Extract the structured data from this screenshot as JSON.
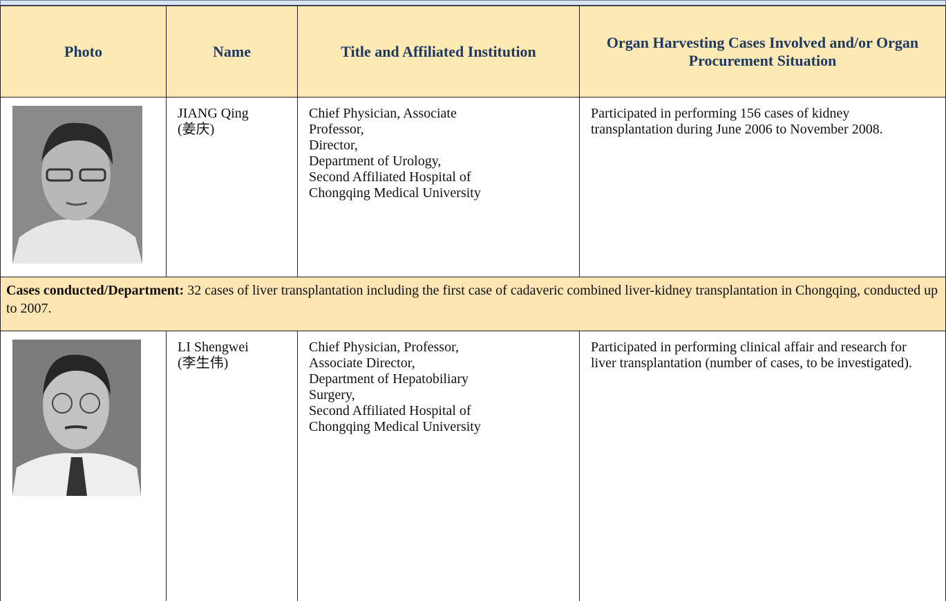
{
  "table": {
    "headers": [
      "Photo",
      "Name",
      "Title and Affiliated Institution",
      "Organ Harvesting Cases Involved and/or Organ Procurement Situation"
    ],
    "rows": [
      {
        "name": [
          "JIANG Qing",
          "(姜庆)"
        ],
        "title": [
          "Chief Physician, Associate",
          "Professor,",
          "Director,",
          "Department of Urology,",
          "Second Affiliated Hospital of",
          "Chongqing Medical University"
        ],
        "cases": "Participated in performing 156 cases of kidney transplantation during June 2006 to November 2008.",
        "note": {
          "label": "Cases conducted/Department:",
          "text": "32 cases of liver transplantation including the first case of cadaveric combined liver-kidney transplantation in Chongqing, conducted up to 2007."
        }
      },
      {
        "name": [
          "LI Shengwei",
          "(李生伟)"
        ],
        "title": [
          "Chief Physician, Professor,",
          "Associate Director,",
          "Department of Hepatobiliary",
          "Surgery,",
          "Second Affiliated Hospital of",
          "Chongqing Medical University"
        ],
        "cases": "Participated in performing clinical affair and research for liver transplantation (number of cases, to be investigated)."
      }
    ]
  }
}
